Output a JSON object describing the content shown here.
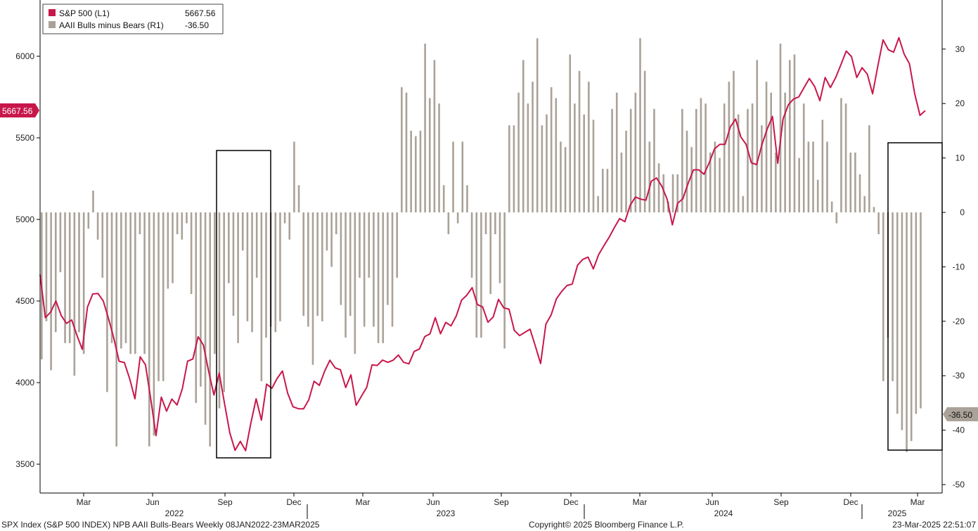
{
  "chart_data": {
    "type": "line+bar",
    "legend": [
      {
        "name": "S&P 500 (L1)",
        "value": "5667.56",
        "color": "#c8174a"
      },
      {
        "name": "AAII Bulls minus Bears (R1)",
        "value": "-36.50",
        "color": "#aaa298"
      }
    ],
    "last_value_tags": {
      "left": "5667.56",
      "right": "-36.50"
    },
    "left_axis": {
      "ticks": [
        "3500",
        "4000",
        "4500",
        "5000",
        "5500",
        "6000"
      ],
      "range": [
        3280,
        6330
      ]
    },
    "right_axis": {
      "ticks": [
        "-50",
        "-40",
        "-30",
        "-20",
        "-10",
        "0",
        "10",
        "20",
        "30"
      ],
      "range": [
        -50.5,
        38
      ]
    },
    "x_month_ticks": [
      "Mar",
      "Jun",
      "Sep",
      "Dec",
      "Mar",
      "Jun",
      "Sep",
      "Dec",
      "Mar",
      "Jun",
      "Sep",
      "Dec",
      "Mar"
    ],
    "x_year_labels": [
      "2022",
      "2023",
      "2024",
      "2025"
    ],
    "sp500_weekly": [
      4662,
      4398,
      4432,
      4500,
      4412,
      4363,
      4384,
      4289,
      4204,
      4463,
      4543,
      4546,
      4500,
      4392,
      4272,
      4131,
      4123,
      4024,
      3901,
      4158,
      4109,
      3900,
      3675,
      3911,
      3825,
      3899,
      3863,
      3962,
      4131,
      4145,
      4281,
      4230,
      4068,
      3924,
      4058,
      3873,
      3693,
      3585,
      3640,
      3583,
      3752,
      3901,
      3770,
      3991,
      3965,
      4026,
      4071,
      3934,
      3852,
      3840,
      3839,
      3895,
      4008,
      3983,
      4070,
      4137,
      4090,
      4079,
      3970,
      4048,
      3861,
      3917,
      3971,
      4109,
      4105,
      4138,
      4124,
      4137,
      4169,
      4124,
      4115,
      4191,
      4206,
      4282,
      4299,
      4398,
      4299,
      4369,
      4348,
      4409,
      4505,
      4536,
      4582,
      4478,
      4464,
      4370,
      4402,
      4510,
      4458,
      4450,
      4320,
      4288,
      4308,
      4327,
      4224,
      4117,
      4358,
      4415,
      4514,
      4559,
      4595,
      4604,
      4719,
      4755,
      4769,
      4697,
      4784,
      4839,
      4891,
      4951,
      5005,
      4986,
      5087,
      5137,
      5124,
      5118,
      5234,
      5254,
      5204,
      5124,
      4967,
      5099,
      5127,
      5222,
      5304,
      5304,
      5277,
      5347,
      5432,
      5460,
      5460,
      5567,
      5615,
      5505,
      5460,
      5347,
      5336,
      5459,
      5554,
      5631,
      5344,
      5616,
      5702,
      5738,
      5751,
      5808,
      5864,
      5815,
      5728,
      5870,
      5808,
      5870,
      5949,
      6032,
      5998,
      5870,
      5930,
      5890,
      5770,
      5942,
      6101,
      6040,
      6025,
      6114,
      6013,
      5954,
      5770,
      5638,
      5667
    ]
  }
}
